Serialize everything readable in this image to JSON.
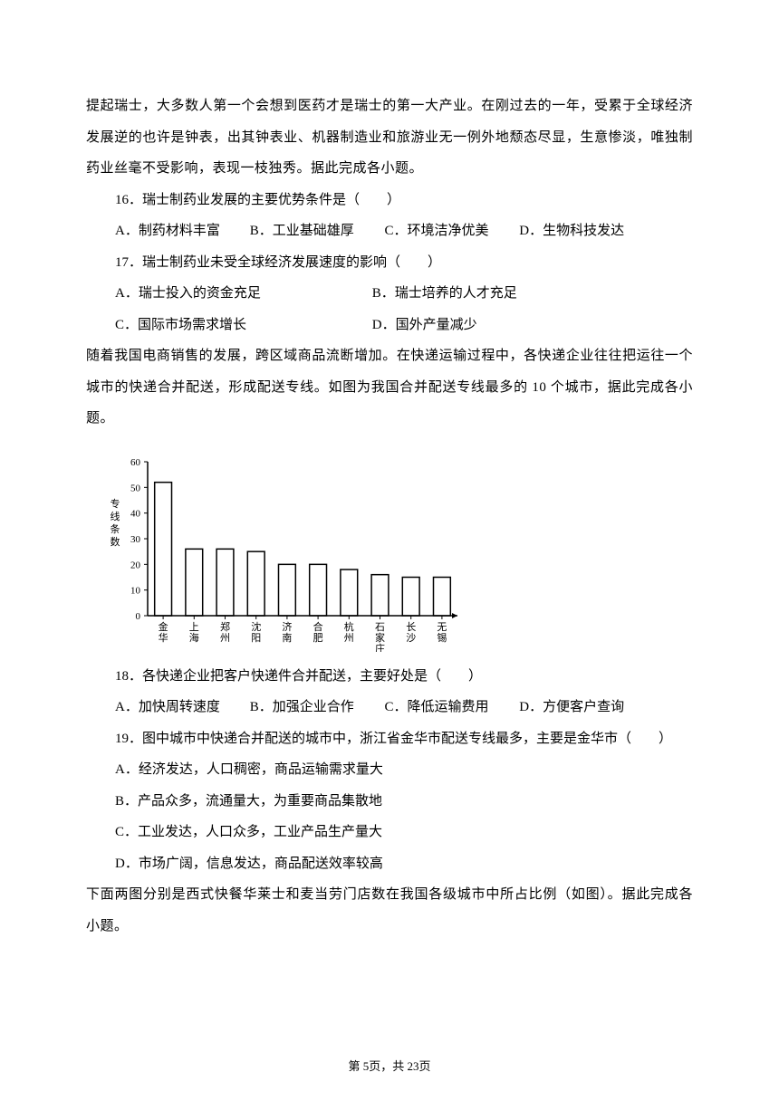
{
  "intro1": "提起瑞士，大多数人第一个会想到医药才是瑞士的第一大产业。在刚过去的一年，受累于全球经济发展逆的也许是钟表，出其钟表业、机器制造业和旅游业无一例外地颓态尽显，生意惨淡，唯独制药业丝毫不受影响，表现一枝独秀。据此完成各小题。",
  "q16": {
    "num": "16．",
    "text": "瑞士制药业发展的主要优势条件是（　　）",
    "A": "A．制药材料丰富",
    "B": "B．工业基础雄厚",
    "C": "C．环境洁净优美",
    "D": "D．生物科技发达"
  },
  "q17": {
    "num": "17．",
    "text": "瑞士制药业未受全球经济发展速度的影响（　　）",
    "A": "A．瑞士投入的资金充足",
    "B": "B．瑞士培养的人才充足",
    "C": "C．国际市场需求增长",
    "D": "D．国外产量减少"
  },
  "intro2": "随着我国电商销售的发展，跨区域商品流断增加。在快递运输过程中，各快递企业往往把运往一个城市的快递合并配送，形成配送专线。如图为我国合并配送专线最多的 10 个城市，据此完成各小题。",
  "chart": {
    "type": "bar",
    "ylabel": "专线条数",
    "ylim": [
      0,
      60
    ],
    "ytick_step": 10,
    "yticks": [
      0,
      10,
      20,
      30,
      40,
      50,
      60
    ],
    "categories": [
      "金华",
      "上海",
      "郑州",
      "沈阳",
      "济南",
      "合肥",
      "杭州",
      "石家庄",
      "长沙",
      "无锡"
    ],
    "values": [
      52,
      26,
      26,
      25,
      20,
      20,
      18,
      16,
      15,
      15
    ],
    "bar_color": "#ffffff",
    "bar_border": "#000000",
    "axis_color": "#000000",
    "bar_width": 0.55,
    "label_fontsize": 11
  },
  "q18": {
    "num": "18．",
    "text": "各快递企业把客户快递件合并配送，主要好处是（　　）",
    "A": "A．加快周转速度",
    "B": "B．加强企业合作",
    "C": "C．降低运输费用",
    "D": "D．方便客户查询"
  },
  "q19": {
    "num": "19．",
    "text": "图中城市中快递合并配送的城市中，浙江省金华市配送专线最多，主要是金华市（　　）",
    "A": "A．经济发达，人口稠密，商品运输需求量大",
    "B": "B．产品众多，流通量大，为重要商品集散地",
    "C": "C．工业发达，人口众多，工业产品生产量大",
    "D": "D．市场广阔，信息发达，商品配送效率较高"
  },
  "intro3": "下面两图分别是西式快餐华莱士和麦当劳门店数在我国各级城市中所占比例（如图）。据此完成各小题。",
  "footer": {
    "prefix": "第 ",
    "page": "5",
    "middle": "页，共 ",
    "total": "23",
    "suffix": "页"
  }
}
